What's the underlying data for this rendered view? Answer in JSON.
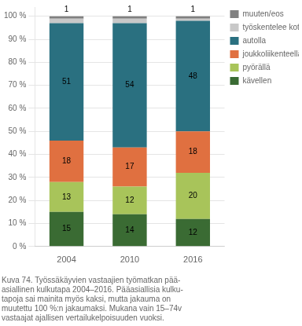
{
  "chart_data": {
    "type": "bar",
    "stacked": true,
    "categories": [
      "2004",
      "2010",
      "2016"
    ],
    "series": [
      {
        "name": "kävellen",
        "color": "#3a6b33",
        "values": [
          15,
          14,
          12
        ],
        "value_labels": [
          "15",
          "14",
          "12"
        ]
      },
      {
        "name": "pyörällä",
        "color": "#a8c45a",
        "values": [
          13,
          12,
          20
        ],
        "value_labels": [
          "13",
          "12",
          "20"
        ]
      },
      {
        "name": "joukkoliikenteellä",
        "color": "#e07040",
        "values": [
          18,
          17,
          18
        ],
        "value_labels": [
          "18",
          "17",
          "18"
        ]
      },
      {
        "name": "autolla",
        "color": "#2a7080",
        "values": [
          51,
          54,
          48
        ],
        "value_labels": [
          "51",
          "54",
          "48"
        ]
      },
      {
        "name": "työskentelee kotona",
        "color": "#c8c8c8",
        "values": [
          2,
          2,
          1
        ],
        "value_labels": [
          null,
          null,
          null
        ]
      },
      {
        "name": "muuten/eos",
        "color": "#808080",
        "values": [
          1,
          1,
          1
        ],
        "value_labels": [
          null,
          null,
          null
        ]
      }
    ],
    "data_labels": true,
    "annotations": [
      {
        "x": "2004",
        "text": "1"
      },
      {
        "x": "2010",
        "text": "1"
      },
      {
        "x": "2016",
        "text": "1"
      }
    ],
    "ylim": [
      0,
      104
    ],
    "yticks": [
      {
        "value": 0,
        "label": "0 %"
      },
      {
        "value": 10,
        "label": "10 %"
      },
      {
        "value": 20,
        "label": "20 %"
      },
      {
        "value": 30,
        "label": "30 %"
      },
      {
        "value": 40,
        "label": "40 %"
      },
      {
        "value": 50,
        "label": "50 %"
      },
      {
        "value": 60,
        "label": "60 %"
      },
      {
        "value": 70,
        "label": "70 %"
      },
      {
        "value": 80,
        "label": "80 %"
      },
      {
        "value": 90,
        "label": "90 %"
      },
      {
        "value": 100,
        "label": "100 %"
      }
    ],
    "grid": true,
    "legend": "right",
    "subtitle": "Kuva 74. Työssäkäyvien vastaajien työmatkan pää-\nasiallinen kulkutapa 2004–2016. Pääasiallisia kulku-\ntapoja sai mainita myös kaksi, mutta jakauma on\nmuutettu 100 %:n jakaumaksi. Mukana vain 15–74v\nvastaajat ajallisen vertailukelpoisuuden vuoksi."
  }
}
